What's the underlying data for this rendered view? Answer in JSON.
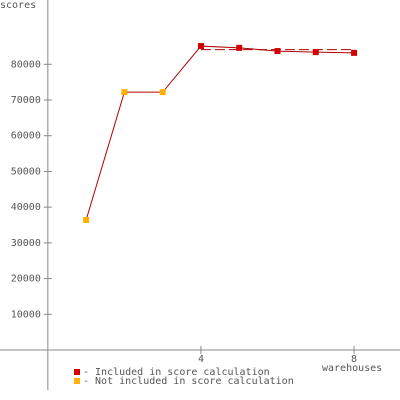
{
  "chart_data": {
    "type": "line",
    "y_label": "scores",
    "x_label": "warehouses",
    "x": [
      1,
      2,
      3,
      4,
      5,
      6,
      7,
      8
    ],
    "values": [
      36400,
      72200,
      72200,
      85100,
      84600,
      83700,
      83400,
      83200
    ],
    "line_color": "#b00000",
    "legend": [
      {
        "label": "- Included in score calculation",
        "color": "#d40000"
      },
      {
        "label": "- Not included in score calculation",
        "color": "#ffb000"
      }
    ],
    "point_legend": [
      1,
      1,
      1,
      0,
      0,
      0,
      0,
      0
    ],
    "reference_line": {
      "value": 84100,
      "from": 4,
      "to": 8
    },
    "xlim": [
      -1.25,
      9.2
    ],
    "ylim": [
      -11200,
      98000
    ],
    "xticks": [
      4,
      8
    ],
    "yticks": [
      10000,
      20000,
      30000,
      40000,
      50000,
      60000,
      70000,
      80000
    ]
  }
}
